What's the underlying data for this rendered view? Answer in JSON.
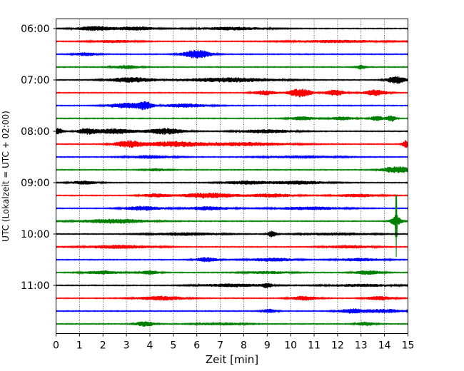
{
  "chart_data": {
    "type": "line",
    "title": "",
    "xlabel": "Zeit  [min]",
    "ylabel": "UTC (Lokalzeit = UTC + 02:00)",
    "xlim": [
      0,
      15
    ],
    "x_ticks": [
      "0",
      "1",
      "2",
      "3",
      "4",
      "5",
      "6",
      "7",
      "8",
      "9",
      "10",
      "11",
      "12",
      "13",
      "14",
      "15"
    ],
    "y_ticks": [
      "06:00",
      "07:00",
      "08:00",
      "09:00",
      "10:00",
      "11:00"
    ],
    "grid": "vertical dotted at each minute",
    "trace_interval_minutes": 15,
    "color_cycle": [
      "#000000",
      "#ff0000",
      "#0000ff",
      "#008000"
    ],
    "traces": [
      {
        "start": "06:00",
        "color": "#000000",
        "bursts": [
          [
            1.6,
            0.8,
            0.5
          ],
          [
            3.4,
            0.9,
            0.4
          ],
          [
            7.5,
            1.5,
            0.35
          ]
        ]
      },
      {
        "start": "06:15",
        "color": "#ff0000",
        "bursts": [
          [
            2.5,
            1.0,
            0.3
          ],
          [
            12.0,
            2.0,
            0.3
          ]
        ]
      },
      {
        "start": "06:30",
        "color": "#0000ff",
        "bursts": [
          [
            6.0,
            0.6,
            1.0
          ],
          [
            1.3,
            0.5,
            0.4
          ]
        ]
      },
      {
        "start": "06:45",
        "color": "#008000",
        "bursts": [
          [
            3.0,
            0.6,
            0.4
          ],
          [
            13.0,
            0.2,
            0.5
          ]
        ]
      },
      {
        "start": "07:00",
        "color": "#000000",
        "bursts": [
          [
            3.2,
            1.0,
            0.6
          ],
          [
            7.4,
            2.0,
            0.5
          ],
          [
            14.5,
            0.4,
            0.9
          ]
        ]
      },
      {
        "start": "07:15",
        "color": "#ff0000",
        "bursts": [
          [
            10.4,
            0.5,
            1.0
          ],
          [
            11.9,
            0.4,
            0.7
          ],
          [
            13.6,
            0.5,
            0.7
          ],
          [
            8.9,
            0.5,
            0.5
          ]
        ]
      },
      {
        "start": "07:30",
        "color": "#0000ff",
        "bursts": [
          [
            3.0,
            0.8,
            0.6
          ],
          [
            3.8,
            0.3,
            0.8
          ],
          [
            5.5,
            1.0,
            0.4
          ]
        ]
      },
      {
        "start": "07:45",
        "color": "#008000",
        "bursts": [
          [
            10.5,
            0.6,
            0.4
          ],
          [
            12.2,
            0.5,
            0.4
          ],
          [
            13.7,
            0.3,
            0.6
          ],
          [
            14.3,
            0.2,
            0.7
          ]
        ]
      },
      {
        "start": "08:00",
        "color": "#000000",
        "bursts": [
          [
            0.1,
            0.2,
            0.7
          ],
          [
            1.3,
            0.4,
            0.6
          ],
          [
            2.5,
            0.9,
            0.6
          ],
          [
            4.7,
            0.8,
            0.7
          ],
          [
            9.0,
            1.2,
            0.4
          ]
        ]
      },
      {
        "start": "08:15",
        "color": "#ff0000",
        "bursts": [
          [
            3.1,
            0.6,
            0.8
          ],
          [
            5.0,
            1.2,
            0.6
          ],
          [
            8.0,
            2.0,
            0.4
          ],
          [
            14.9,
            0.15,
            0.9
          ]
        ]
      },
      {
        "start": "08:30",
        "color": "#0000ff",
        "bursts": [
          [
            4.0,
            1.0,
            0.35
          ],
          [
            10.5,
            1.5,
            0.3
          ]
        ]
      },
      {
        "start": "08:45",
        "color": "#008000",
        "bursts": [
          [
            14.3,
            0.5,
            0.6
          ],
          [
            14.8,
            0.3,
            0.5
          ],
          [
            4.3,
            0.5,
            0.3
          ]
        ]
      },
      {
        "start": "09:00",
        "color": "#000000",
        "bursts": [
          [
            1.2,
            0.6,
            0.4
          ],
          [
            8.1,
            1.0,
            0.4
          ],
          [
            10.4,
            1.2,
            0.4
          ]
        ]
      },
      {
        "start": "09:15",
        "color": "#ff0000",
        "bursts": [
          [
            6.5,
            1.2,
            0.6
          ],
          [
            4.2,
            0.6,
            0.4
          ],
          [
            9.2,
            1.0,
            0.4
          ],
          [
            12.8,
            1.0,
            0.35
          ]
        ]
      },
      {
        "start": "09:30",
        "color": "#0000ff",
        "bursts": [
          [
            3.7,
            0.8,
            0.5
          ],
          [
            6.5,
            1.0,
            0.4
          ],
          [
            10.8,
            1.5,
            0.35
          ]
        ]
      },
      {
        "start": "09:45",
        "color": "#008000",
        "bursts": [
          [
            2.5,
            1.5,
            0.5
          ],
          [
            14.5,
            0.25,
            1.0
          ]
        ],
        "spike": {
          "x": 14.5,
          "amplitude": 2.8
        }
      },
      {
        "start": "10:00",
        "color": "#000000",
        "bursts": [
          [
            5.5,
            1.5,
            0.35
          ],
          [
            9.2,
            0.2,
            0.7
          ],
          [
            12.0,
            1.5,
            0.3
          ]
        ]
      },
      {
        "start": "10:15",
        "color": "#ff0000",
        "bursts": [
          [
            2.7,
            1.5,
            0.4
          ],
          [
            12.5,
            1.0,
            0.35
          ]
        ]
      },
      {
        "start": "10:30",
        "color": "#0000ff",
        "bursts": [
          [
            6.4,
            0.5,
            0.5
          ],
          [
            9.2,
            1.0,
            0.4
          ],
          [
            13.0,
            1.0,
            0.35
          ]
        ]
      },
      {
        "start": "10:45",
        "color": "#008000",
        "bursts": [
          [
            2.0,
            0.8,
            0.4
          ],
          [
            4.0,
            0.4,
            0.5
          ],
          [
            13.3,
            0.6,
            0.45
          ],
          [
            9.0,
            1.0,
            0.3
          ]
        ]
      },
      {
        "start": "11:00",
        "color": "#000000",
        "bursts": [
          [
            7.5,
            1.5,
            0.35
          ],
          [
            9.0,
            0.2,
            0.5
          ],
          [
            13.0,
            1.5,
            0.3
          ]
        ]
      },
      {
        "start": "11:15",
        "color": "#ff0000",
        "bursts": [
          [
            4.5,
            1.0,
            0.5
          ],
          [
            10.6,
            0.6,
            0.5
          ],
          [
            13.8,
            0.6,
            0.45
          ]
        ]
      },
      {
        "start": "11:30",
        "color": "#0000ff",
        "bursts": [
          [
            12.6,
            0.6,
            0.5
          ],
          [
            9.1,
            0.3,
            0.5
          ],
          [
            14.0,
            0.8,
            0.45
          ]
        ]
      },
      {
        "start": "11:45",
        "color": "#008000",
        "bursts": [
          [
            3.8,
            0.4,
            0.6
          ],
          [
            13.2,
            0.4,
            0.45
          ],
          [
            7.0,
            1.0,
            0.3
          ]
        ]
      }
    ]
  }
}
